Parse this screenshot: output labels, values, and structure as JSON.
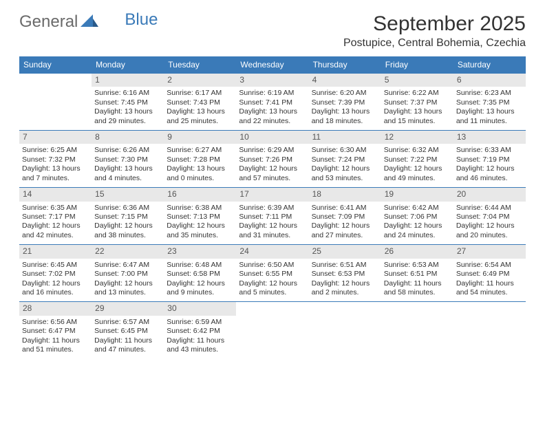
{
  "logo": {
    "text1": "General",
    "text2": "Blue"
  },
  "title": "September 2025",
  "location": "Postupice, Central Bohemia, Czechia",
  "colors": {
    "header_bg": "#3a7ab8",
    "header_text": "#ffffff",
    "daynum_bg": "#e8e8e8",
    "daynum_text": "#555555",
    "border": "#3a7ab8",
    "body_text": "#333333",
    "page_bg": "#ffffff",
    "logo_gray": "#6a6a6a",
    "logo_blue": "#3a7ab8"
  },
  "layout": {
    "cols": 7,
    "rows": 5,
    "first_weekday_offset": 1,
    "days_in_month": 30,
    "cell_fontsize_pt": 8,
    "header_fontsize_pt": 9,
    "title_fontsize_pt": 22,
    "location_fontsize_pt": 12
  },
  "weekdays": [
    "Sunday",
    "Monday",
    "Tuesday",
    "Wednesday",
    "Thursday",
    "Friday",
    "Saturday"
  ],
  "days": [
    {
      "n": 1,
      "sunrise": "6:16 AM",
      "sunset": "7:45 PM",
      "daylight": "13 hours and 29 minutes."
    },
    {
      "n": 2,
      "sunrise": "6:17 AM",
      "sunset": "7:43 PM",
      "daylight": "13 hours and 25 minutes."
    },
    {
      "n": 3,
      "sunrise": "6:19 AM",
      "sunset": "7:41 PM",
      "daylight": "13 hours and 22 minutes."
    },
    {
      "n": 4,
      "sunrise": "6:20 AM",
      "sunset": "7:39 PM",
      "daylight": "13 hours and 18 minutes."
    },
    {
      "n": 5,
      "sunrise": "6:22 AM",
      "sunset": "7:37 PM",
      "daylight": "13 hours and 15 minutes."
    },
    {
      "n": 6,
      "sunrise": "6:23 AM",
      "sunset": "7:35 PM",
      "daylight": "13 hours and 11 minutes."
    },
    {
      "n": 7,
      "sunrise": "6:25 AM",
      "sunset": "7:32 PM",
      "daylight": "13 hours and 7 minutes."
    },
    {
      "n": 8,
      "sunrise": "6:26 AM",
      "sunset": "7:30 PM",
      "daylight": "13 hours and 4 minutes."
    },
    {
      "n": 9,
      "sunrise": "6:27 AM",
      "sunset": "7:28 PM",
      "daylight": "13 hours and 0 minutes."
    },
    {
      "n": 10,
      "sunrise": "6:29 AM",
      "sunset": "7:26 PM",
      "daylight": "12 hours and 57 minutes."
    },
    {
      "n": 11,
      "sunrise": "6:30 AM",
      "sunset": "7:24 PM",
      "daylight": "12 hours and 53 minutes."
    },
    {
      "n": 12,
      "sunrise": "6:32 AM",
      "sunset": "7:22 PM",
      "daylight": "12 hours and 49 minutes."
    },
    {
      "n": 13,
      "sunrise": "6:33 AM",
      "sunset": "7:19 PM",
      "daylight": "12 hours and 46 minutes."
    },
    {
      "n": 14,
      "sunrise": "6:35 AM",
      "sunset": "7:17 PM",
      "daylight": "12 hours and 42 minutes."
    },
    {
      "n": 15,
      "sunrise": "6:36 AM",
      "sunset": "7:15 PM",
      "daylight": "12 hours and 38 minutes."
    },
    {
      "n": 16,
      "sunrise": "6:38 AM",
      "sunset": "7:13 PM",
      "daylight": "12 hours and 35 minutes."
    },
    {
      "n": 17,
      "sunrise": "6:39 AM",
      "sunset": "7:11 PM",
      "daylight": "12 hours and 31 minutes."
    },
    {
      "n": 18,
      "sunrise": "6:41 AM",
      "sunset": "7:09 PM",
      "daylight": "12 hours and 27 minutes."
    },
    {
      "n": 19,
      "sunrise": "6:42 AM",
      "sunset": "7:06 PM",
      "daylight": "12 hours and 24 minutes."
    },
    {
      "n": 20,
      "sunrise": "6:44 AM",
      "sunset": "7:04 PM",
      "daylight": "12 hours and 20 minutes."
    },
    {
      "n": 21,
      "sunrise": "6:45 AM",
      "sunset": "7:02 PM",
      "daylight": "12 hours and 16 minutes."
    },
    {
      "n": 22,
      "sunrise": "6:47 AM",
      "sunset": "7:00 PM",
      "daylight": "12 hours and 13 minutes."
    },
    {
      "n": 23,
      "sunrise": "6:48 AM",
      "sunset": "6:58 PM",
      "daylight": "12 hours and 9 minutes."
    },
    {
      "n": 24,
      "sunrise": "6:50 AM",
      "sunset": "6:55 PM",
      "daylight": "12 hours and 5 minutes."
    },
    {
      "n": 25,
      "sunrise": "6:51 AM",
      "sunset": "6:53 PM",
      "daylight": "12 hours and 2 minutes."
    },
    {
      "n": 26,
      "sunrise": "6:53 AM",
      "sunset": "6:51 PM",
      "daylight": "11 hours and 58 minutes."
    },
    {
      "n": 27,
      "sunrise": "6:54 AM",
      "sunset": "6:49 PM",
      "daylight": "11 hours and 54 minutes."
    },
    {
      "n": 28,
      "sunrise": "6:56 AM",
      "sunset": "6:47 PM",
      "daylight": "11 hours and 51 minutes."
    },
    {
      "n": 29,
      "sunrise": "6:57 AM",
      "sunset": "6:45 PM",
      "daylight": "11 hours and 47 minutes."
    },
    {
      "n": 30,
      "sunrise": "6:59 AM",
      "sunset": "6:42 PM",
      "daylight": "11 hours and 43 minutes."
    }
  ],
  "labels": {
    "sunrise": "Sunrise:",
    "sunset": "Sunset:",
    "daylight": "Daylight:"
  }
}
